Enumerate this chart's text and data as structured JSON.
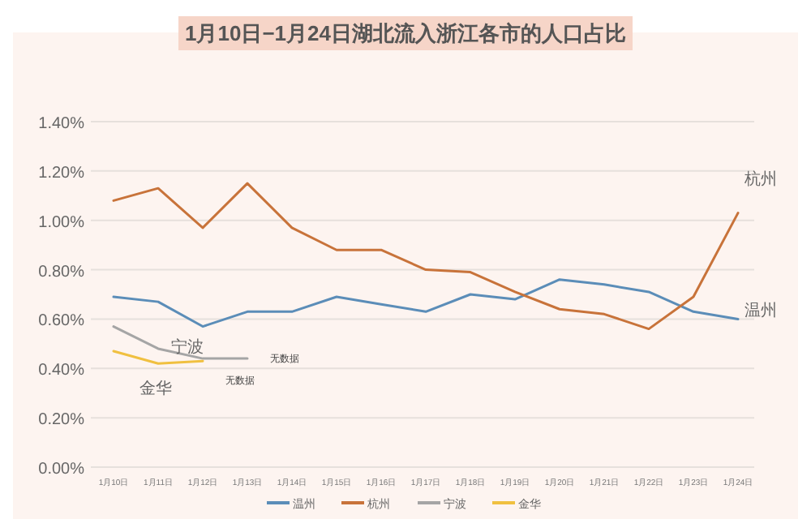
{
  "chart_data": {
    "type": "line",
    "title": "1月10日−1月24日湖北流入浙江各市的人口占比",
    "categories": [
      "1月10日",
      "1月11日",
      "1月12日",
      "1月13日",
      "1月14日",
      "1月15日",
      "1月16日",
      "1月17日",
      "1月18日",
      "1月19日",
      "1月20日",
      "1月21日",
      "1月22日",
      "1月23日",
      "1月24日"
    ],
    "series": [
      {
        "name": "温州",
        "color": "#5b8db8",
        "values": [
          0.69,
          0.67,
          0.57,
          0.63,
          0.63,
          0.69,
          0.66,
          0.63,
          0.7,
          0.68,
          0.76,
          0.74,
          0.71,
          0.63,
          0.6
        ]
      },
      {
        "name": "杭州",
        "color": "#c8733a",
        "values": [
          1.08,
          1.13,
          0.97,
          1.15,
          0.97,
          0.88,
          0.88,
          0.8,
          0.79,
          0.71,
          0.64,
          0.62,
          0.56,
          0.69,
          1.03
        ]
      },
      {
        "name": "宁波",
        "color": "#a5a5a5",
        "values": [
          0.57,
          0.48,
          0.44,
          0.44,
          null,
          null,
          null,
          null,
          null,
          null,
          null,
          null,
          null,
          null,
          null
        ]
      },
      {
        "name": "金华",
        "color": "#f0c040",
        "values": [
          0.47,
          0.42,
          0.43,
          null,
          null,
          null,
          null,
          null,
          null,
          null,
          null,
          null,
          null,
          null,
          null
        ]
      }
    ],
    "ylim": [
      0,
      1.4
    ],
    "yticks": [
      {
        "value": 0,
        "label": "0.00%"
      },
      {
        "value": 0.2,
        "label": "0.20%"
      },
      {
        "value": 0.4,
        "label": "0.40%"
      },
      {
        "value": 0.6,
        "label": "0.60%"
      },
      {
        "value": 0.8,
        "label": "0.80%"
      },
      {
        "value": 1.0,
        "label": "1.00%"
      },
      {
        "value": 1.2,
        "label": "1.20%"
      },
      {
        "value": 1.4,
        "label": "1.40%"
      }
    ],
    "grid": "y",
    "legend": "bottom",
    "marker": "none",
    "line_style": "solid",
    "annotations": [
      {
        "text": "无数据",
        "x": "1月13日",
        "y": 0.44
      },
      {
        "text": "无数据",
        "x": "1月12日",
        "y": 0.43
      }
    ]
  }
}
